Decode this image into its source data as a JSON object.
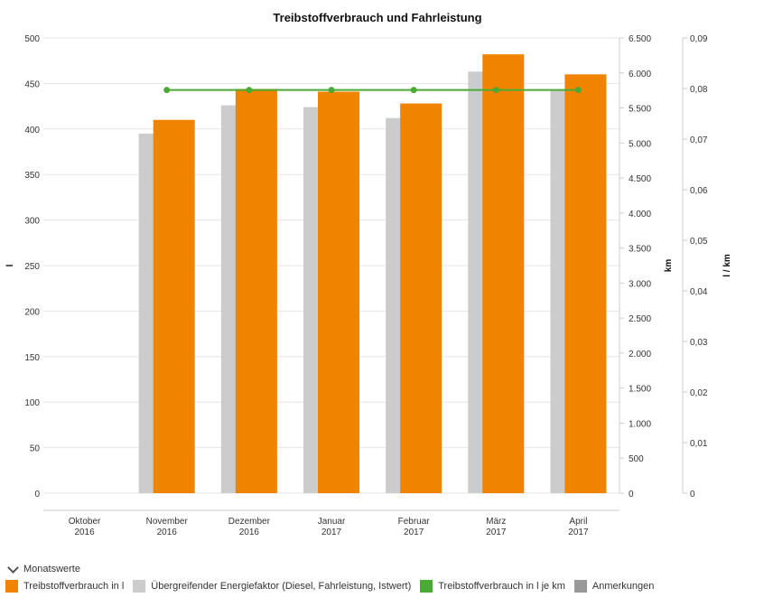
{
  "chart_data": {
    "type": "bar",
    "title": "Treibstoffverbrauch und Fahrleistung",
    "categories": [
      [
        "Oktober",
        "2016"
      ],
      [
        "November",
        "2016"
      ],
      [
        "Dezember",
        "2016"
      ],
      [
        "Januar",
        "2017"
      ],
      [
        "Februar",
        "2017"
      ],
      [
        "März",
        "2017"
      ],
      [
        "April",
        "2017"
      ]
    ],
    "axes": {
      "left": {
        "label": "l",
        "min": 0,
        "max": 500,
        "ticks": [
          "0",
          "50",
          "100",
          "150",
          "200",
          "250",
          "300",
          "350",
          "400",
          "450",
          "500"
        ]
      },
      "right1": {
        "label": "km",
        "min": 0,
        "max": 6500,
        "ticks": [
          "0",
          "500",
          "1.000",
          "1.500",
          "2.000",
          "2.500",
          "3.000",
          "3.500",
          "4.000",
          "4.500",
          "5.000",
          "5.500",
          "6.000",
          "6.500"
        ]
      },
      "right2": {
        "label": "l / km",
        "min": 0,
        "max": 0.09,
        "ticks": [
          "0",
          "0,01",
          "0,02",
          "0,03",
          "0,04",
          "0,05",
          "0,06",
          "0,07",
          "0,08",
          "0,09"
        ]
      }
    },
    "series": [
      {
        "name": "Treibstoffverbrauch in l",
        "type": "bar",
        "axis": "left",
        "color": "#f08300",
        "values": [
          null,
          410,
          444,
          441,
          428,
          482,
          460
        ]
      },
      {
        "name": "Übergreifender Energiefaktor (Diesel, Fahrleistung, Istwert)",
        "type": "bar",
        "axis": "left",
        "color": "#cccccc",
        "values": [
          null,
          395,
          426,
          424,
          412,
          463,
          442
        ]
      },
      {
        "name": "Treibstoffverbrauch in l je km",
        "type": "line",
        "axis": "right2",
        "color": "#4aaa35",
        "values": [
          null,
          0.0797,
          0.0797,
          0.0797,
          0.0797,
          0.0797,
          0.0797
        ]
      }
    ],
    "grid": true,
    "legend_position": "bottom"
  },
  "legend": {
    "toggle_label": "Monatswerte",
    "items": [
      {
        "label": "Treibstoffverbrauch in l",
        "color": "#f08300"
      },
      {
        "label": "Übergreifender Energiefaktor (Diesel, Fahrleistung, Istwert)",
        "color": "#cccccc"
      },
      {
        "label": "Treibstoffverbrauch in l je km",
        "color": "#4aaa35"
      },
      {
        "label": "Anmerkungen",
        "color": "#999999"
      }
    ]
  }
}
